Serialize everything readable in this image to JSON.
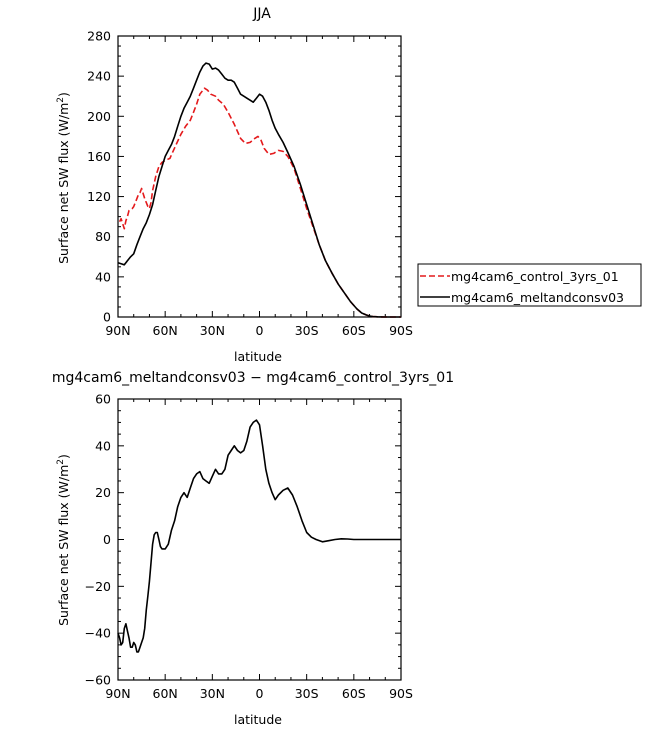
{
  "chart_data": [
    {
      "type": "line",
      "title": "JJA",
      "xlabel": "latitude",
      "ylabel": "Surface net SW flux (W/m",
      "ylabel_sup": "2",
      "ylabel_end": ")",
      "xlim": [
        90,
        -90
      ],
      "ylim": [
        0,
        280
      ],
      "x_ticks": [
        90,
        60,
        30,
        0,
        -30,
        -60,
        -90
      ],
      "x_tick_labels": [
        "90N",
        "60N",
        "30N",
        "0",
        "30S",
        "60S",
        "90S"
      ],
      "y_ticks": [
        0,
        40,
        80,
        120,
        160,
        200,
        240,
        280
      ],
      "y_tick_labels": [
        "0",
        "40",
        "80",
        "120",
        "160",
        "200",
        "240",
        "280"
      ],
      "grid": false,
      "legend_position": "right",
      "series": [
        {
          "name": "mg4cam6_control_3yrs_01",
          "color": "#e41a1c",
          "dash": "dashed",
          "x": [
            89,
            88,
            87,
            86,
            85,
            84,
            83,
            81,
            80,
            78,
            77,
            76,
            75,
            73,
            72,
            71,
            70,
            69,
            68,
            66,
            64,
            62,
            60,
            57,
            55,
            53,
            50,
            47,
            44,
            42,
            40,
            38,
            35,
            33,
            31,
            28,
            26,
            23,
            20,
            16,
            12,
            9,
            6,
            3,
            1,
            -1,
            -3,
            -6,
            -9,
            -12,
            -15,
            -18,
            -22,
            -26,
            -30,
            -34,
            -38,
            -42,
            -46,
            -50,
            -54,
            -58,
            -62,
            -65,
            -68,
            -70,
            -72,
            -75,
            -80,
            -85,
            -90
          ],
          "y": [
            95,
            98,
            93,
            88,
            96,
            100,
            106,
            108,
            110,
            118,
            122,
            124,
            128,
            118,
            114,
            110,
            108,
            114,
            126,
            140,
            150,
            154,
            156,
            158,
            165,
            172,
            182,
            190,
            196,
            204,
            212,
            222,
            228,
            226,
            222,
            220,
            216,
            212,
            204,
            192,
            178,
            173,
            174,
            178,
            180,
            176,
            168,
            162,
            163,
            166,
            165,
            160,
            148,
            128,
            108,
            90,
            72,
            56,
            44,
            33,
            24,
            15,
            8,
            4,
            2,
            1,
            0.5,
            0.2,
            0,
            0,
            0
          ]
        },
        {
          "name": "mg4cam6_meltandconsv03",
          "color": "#000000",
          "dash": "solid",
          "x": [
            90,
            88,
            86,
            84,
            82,
            80,
            78,
            76,
            74,
            72,
            70,
            68,
            66,
            64,
            62,
            60,
            58,
            56,
            54,
            52,
            50,
            48,
            46,
            44,
            42,
            40,
            38,
            36,
            34,
            32,
            30,
            28,
            26,
            24,
            22,
            20,
            18,
            16,
            14,
            12,
            10,
            8,
            6,
            4,
            2,
            0,
            -2,
            -4,
            -6,
            -8,
            -10,
            -12,
            -15,
            -18,
            -22,
            -26,
            -30,
            -34,
            -38,
            -42,
            -46,
            -50,
            -54,
            -58,
            -62,
            -65,
            -68,
            -70,
            -72,
            -75,
            -80,
            -85,
            -90
          ],
          "y": [
            54,
            53,
            52,
            56,
            60,
            63,
            72,
            80,
            88,
            94,
            102,
            112,
            126,
            140,
            150,
            160,
            166,
            172,
            180,
            190,
            200,
            208,
            214,
            220,
            228,
            236,
            244,
            250,
            253,
            252,
            247,
            248,
            246,
            242,
            238,
            236,
            236,
            234,
            228,
            222,
            220,
            218,
            216,
            214,
            218,
            222,
            220,
            214,
            206,
            196,
            188,
            182,
            174,
            164,
            150,
            132,
            112,
            92,
            72,
            56,
            44,
            33,
            24,
            15,
            8,
            4,
            2,
            1,
            0.5,
            0.2,
            0,
            0,
            0
          ]
        }
      ]
    },
    {
      "type": "line",
      "title": "mg4cam6_meltandconsv03 − mg4cam6_control_3yrs_01",
      "xlabel": "latitude",
      "ylabel": "Surface net SW flux (W/m",
      "ylabel_sup": "2",
      "ylabel_end": ")",
      "xlim": [
        90,
        -90
      ],
      "ylim": [
        -60,
        60
      ],
      "x_ticks": [
        90,
        60,
        30,
        0,
        -30,
        -60,
        -90
      ],
      "x_tick_labels": [
        "90N",
        "60N",
        "30N",
        "0",
        "30S",
        "60S",
        "90S"
      ],
      "y_ticks": [
        -60,
        -40,
        -20,
        0,
        20,
        40,
        60
      ],
      "y_tick_labels": [
        "−60",
        "−40",
        "−20",
        "0",
        "20",
        "40",
        "60"
      ],
      "grid": false,
      "series": [
        {
          "color": "#000000",
          "dash": "solid",
          "x": [
            90,
            89,
            88,
            87,
            86,
            85,
            84,
            83,
            82,
            81,
            80,
            79,
            78,
            77,
            76,
            75,
            74,
            73,
            72,
            71,
            70,
            69,
            68,
            67,
            66,
            65,
            64,
            63,
            62,
            61,
            60,
            58,
            56,
            54,
            52,
            50,
            48,
            46,
            44,
            42,
            40,
            38,
            36,
            34,
            32,
            30,
            28,
            26,
            24,
            22,
            20,
            18,
            16,
            14,
            12,
            10,
            8,
            6,
            4,
            2,
            0,
            -2,
            -4,
            -6,
            -8,
            -10,
            -12,
            -15,
            -18,
            -21,
            -24,
            -27,
            -30,
            -33,
            -36,
            -40,
            -44,
            -48,
            -52,
            -56,
            -60,
            -65,
            -70,
            -80,
            -90
          ],
          "y": [
            -40,
            -42,
            -45,
            -44,
            -38,
            -36,
            -39,
            -42,
            -46,
            -46,
            -44,
            -45,
            -48,
            -48,
            -46,
            -44,
            -42,
            -38,
            -30,
            -24,
            -18,
            -10,
            -2,
            2,
            3,
            3,
            0,
            -3,
            -4,
            -4,
            -4,
            -2,
            4,
            8,
            14,
            18,
            20,
            18,
            22,
            26,
            28,
            29,
            26,
            25,
            24,
            27,
            30,
            28,
            28,
            30,
            36,
            38,
            40,
            38,
            37,
            38,
            42,
            48,
            50,
            51,
            49,
            40,
            30,
            24,
            20,
            17,
            19,
            21,
            22,
            19,
            14,
            8,
            3,
            1,
            0,
            -1,
            -0.5,
            0,
            0.3,
            0.2,
            0,
            0,
            0,
            0,
            0
          ]
        }
      ]
    }
  ]
}
